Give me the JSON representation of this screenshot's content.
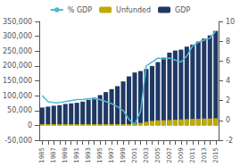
{
  "chart_data": {
    "type": "bar",
    "categories": [
      "1985",
      null,
      "1987",
      null,
      "1989",
      null,
      "1991",
      null,
      "1993",
      null,
      "1995",
      null,
      "1997",
      null,
      "1999",
      null,
      "2001",
      null,
      "2003",
      null,
      "2005",
      null,
      "2007",
      null,
      "2009",
      null,
      "2011",
      null,
      "2013",
      null,
      "2015"
    ],
    "series": [
      {
        "name": "GDP",
        "type": "bar",
        "color": "#1f3864",
        "values": [
          60000,
          63000,
          66000,
          68000,
          72000,
          74000,
          76000,
          80000,
          86000,
          93000,
          102000,
          112000,
          122000,
          132000,
          148000,
          165000,
          178000,
          183000,
          190000,
          200000,
          213000,
          228000,
          245000,
          252000,
          255000,
          265000,
          272000,
          282000,
          292000,
          303000,
          318000
        ]
      },
      {
        "name": "Unfunded",
        "type": "bar",
        "color": "#bfab00",
        "values": [
          4000,
          4000,
          4000,
          4000,
          4000,
          4000,
          4000,
          4000,
          4000,
          4000,
          4000,
          4000,
          4000,
          4000,
          4000,
          4000,
          4000,
          8000,
          12000,
          15000,
          17000,
          17000,
          18000,
          19000,
          20000,
          21000,
          22000,
          22000,
          23000,
          23000,
          24000
        ]
      },
      {
        "name": "% GDP",
        "type": "line",
        "axis": "y2",
        "color": "#4db8d4",
        "values": [
          2.5,
          1.9,
          1.8,
          1.8,
          1.9,
          2.0,
          2.1,
          2.1,
          2.2,
          2.2,
          2.1,
          1.9,
          1.7,
          1.4,
          1.0,
          0.1,
          -0.4,
          0.9,
          5.5,
          5.9,
          6.3,
          6.2,
          6.3,
          6.1,
          5.9,
          6.5,
          7.5,
          7.9,
          8.1,
          8.3,
          9.0
        ]
      }
    ],
    "ylim": [
      -50000,
      350000
    ],
    "yticks": [
      {
        "value": -50000,
        "label": "-50,000"
      },
      0,
      {
        "value": 50000,
        "label": "50,000"
      },
      {
        "value": 100000,
        "label": "100,000"
      },
      {
        "value": 150000,
        "label": "150,000"
      },
      {
        "value": 200000,
        "label": "200,000"
      },
      {
        "value": 250000,
        "label": "250,000"
      },
      {
        "value": 300000,
        "label": "300,000"
      },
      {
        "value": 350000,
        "label": "350,000"
      }
    ],
    "y2lim": [
      -2,
      10
    ],
    "y2ticks": [
      -2,
      0,
      2,
      4,
      6,
      8,
      10
    ],
    "stacked": false,
    "grid": false,
    "legend": "top"
  }
}
